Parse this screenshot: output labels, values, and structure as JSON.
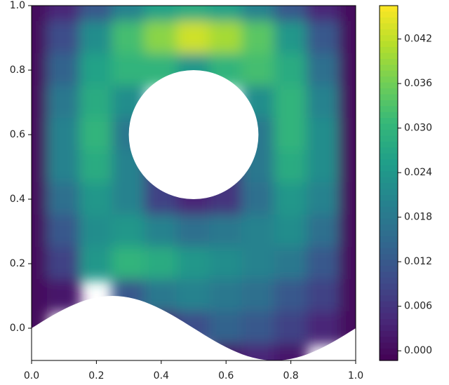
{
  "chart_data": {
    "type": "contour",
    "colormap": "viridis",
    "x": [
      0,
      0.1,
      0.2,
      0.3,
      0.4,
      0.5,
      0.6,
      0.7,
      0.8,
      0.9,
      1.0
    ],
    "y": [
      1.0,
      0.9,
      0.8,
      0.7,
      0.6,
      0.5,
      0.4,
      0.3,
      0.2,
      0.1,
      0.0,
      -0.1
    ],
    "z": [
      [
        0,
        0.004,
        0.012,
        0.02,
        0.026,
        0.028,
        0.026,
        0.02,
        0.012,
        0.004,
        0
      ],
      [
        0,
        0.01,
        0.022,
        0.032,
        0.038,
        0.043,
        0.04,
        0.034,
        0.024,
        0.012,
        0
      ],
      [
        0,
        0.014,
        0.026,
        0.03,
        0.03,
        0.024,
        0.03,
        0.032,
        0.028,
        0.016,
        0
      ],
      [
        0,
        0.018,
        0.028,
        0.022,
        null,
        null,
        null,
        0.022,
        0.03,
        0.02,
        0
      ],
      [
        0,
        0.02,
        0.03,
        0.018,
        null,
        null,
        null,
        0.018,
        0.03,
        0.022,
        0
      ],
      [
        0,
        0.02,
        0.028,
        0.02,
        0.008,
        null,
        0.006,
        0.018,
        0.028,
        0.022,
        0
      ],
      [
        0,
        0.016,
        0.024,
        0.02,
        0.008,
        0.004,
        0.006,
        0.016,
        0.024,
        0.02,
        0
      ],
      [
        0,
        0.012,
        0.022,
        0.024,
        0.02,
        0.016,
        0.018,
        0.02,
        0.022,
        0.016,
        0
      ],
      [
        0,
        0.008,
        0.024,
        0.03,
        0.028,
        0.024,
        0.022,
        0.02,
        0.018,
        0.012,
        0
      ],
      [
        0,
        0.002,
        null,
        0.012,
        0.018,
        0.02,
        0.018,
        0.016,
        0.012,
        0.008,
        0
      ],
      [
        0,
        null,
        null,
        null,
        0.004,
        0.01,
        0.014,
        0.012,
        0.008,
        0.004,
        0
      ],
      [
        null,
        null,
        null,
        null,
        null,
        null,
        0.002,
        0.004,
        0.002,
        null,
        null
      ]
    ],
    "xlim": [
      0,
      1.0
    ],
    "ylim": [
      -0.1,
      1.0
    ],
    "zlim": [
      -0.0013,
      0.0465
    ],
    "xticks": [
      {
        "value": 0,
        "label": "0.0"
      },
      {
        "value": 0.2,
        "label": "0.2"
      },
      {
        "value": 0.4,
        "label": "0.4"
      },
      {
        "value": 0.6,
        "label": "0.6"
      },
      {
        "value": 0.8,
        "label": "0.8"
      },
      {
        "value": 1.0,
        "label": "1.0"
      }
    ],
    "yticks": [
      {
        "value": 0,
        "label": "0.0"
      },
      {
        "value": 0.2,
        "label": "0.2"
      },
      {
        "value": 0.4,
        "label": "0.4"
      },
      {
        "value": 0.6,
        "label": "0.6"
      },
      {
        "value": 0.8,
        "label": "0.8"
      },
      {
        "value": 1.0,
        "label": "1.0"
      }
    ],
    "zticks": [
      {
        "value": 0,
        "label": "0.000"
      },
      {
        "value": 0.006,
        "label": "0.006"
      },
      {
        "value": 0.012,
        "label": "0.012"
      },
      {
        "value": 0.018,
        "label": "0.018"
      },
      {
        "value": 0.024,
        "label": "0.024"
      },
      {
        "value": 0.03,
        "label": "0.030"
      },
      {
        "value": 0.036,
        "label": "0.036"
      },
      {
        "value": 0.042,
        "label": "0.042"
      }
    ]
  }
}
